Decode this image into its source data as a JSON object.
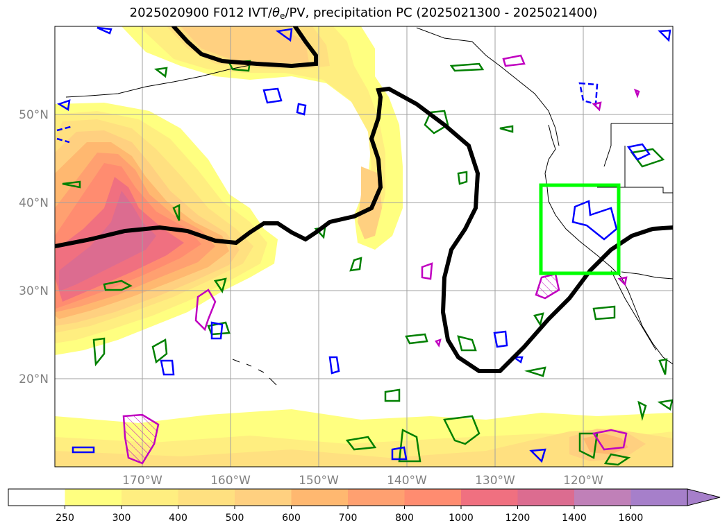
{
  "title": {
    "prefix": "2025020900 F012 IVT/",
    "theta": "θ",
    "theta_sub": "e",
    "suffix": "/PV, precipitation PC (2025021300 - 2025021400)"
  },
  "map": {
    "lat_labels": [
      "50°N",
      "40°N",
      "30°N",
      "20°N"
    ],
    "lon_labels": [
      "170°W",
      "160°W",
      "150°W",
      "140°W",
      "130°W",
      "120°W"
    ],
    "ivt_fill_colors": [
      "#ffff80",
      "#ffee80",
      "#ffe080",
      "#ffd080",
      "#ffb870",
      "#ffa070",
      "#ff8c70",
      "#f07080"
    ],
    "box_color": "#00ff00",
    "contour_colors": {
      "pv": "#000000",
      "green": "#008000",
      "blue": "#0000ff",
      "magenta": "#c000c0"
    }
  },
  "colorbar": {
    "ticks": [
      "250",
      "300",
      "400",
      "500",
      "600",
      "700",
      "800",
      "1000",
      "1200",
      "1400",
      "1600"
    ],
    "colors": [
      "#ffffff",
      "#ffff80",
      "#ffee80",
      "#ffe080",
      "#ffd080",
      "#ffb870",
      "#ffa070",
      "#ff8c70",
      "#f07080",
      "#dc6c90",
      "#c080b8",
      "#a67fca"
    ]
  }
}
